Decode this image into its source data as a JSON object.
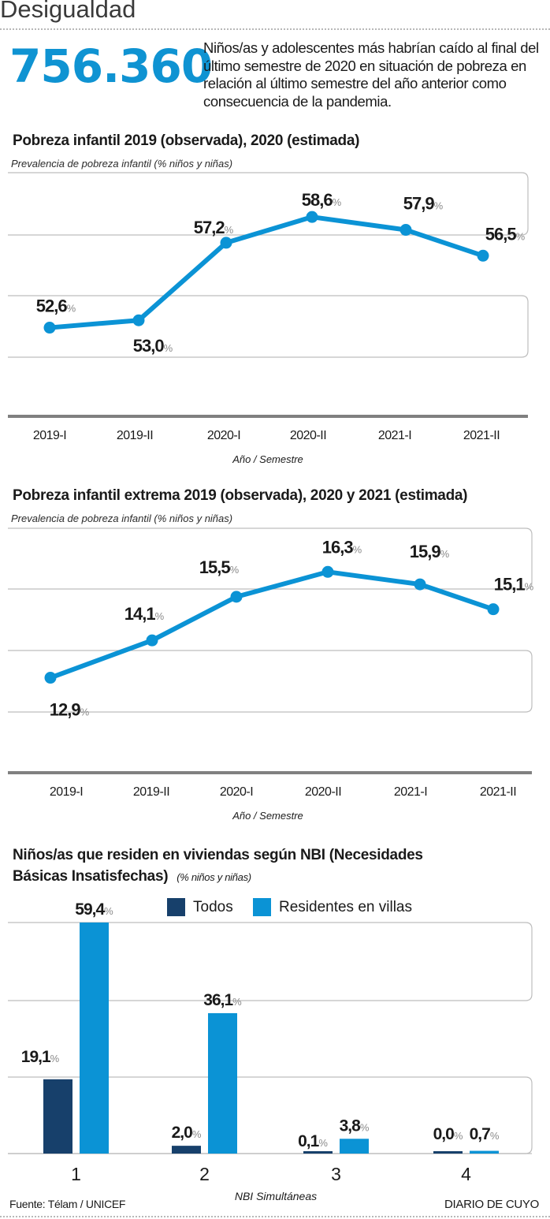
{
  "header": {
    "section_title": "Desigualdad",
    "big_number": "756.360",
    "intro_text": "Niños/as y adolescentes más habrían caído al final del último semestre de 2020 en situación de pobreza en relación al último semestre del año anterior como consecuencia de la pandemia."
  },
  "colors": {
    "accent": "#0f93d2",
    "line": "#0b93d5",
    "bar_todos": "#17406b",
    "bar_villas": "#0b93d5",
    "text": "#1a1a1a",
    "percent_sign": "#8a8a8a",
    "grid": "#bdbdbd",
    "axis": "#808080"
  },
  "chart_data": [
    {
      "type": "line",
      "title": "Pobreza infantil 2019 (observada), 2020 (estimada)",
      "subtitle": "Prevalencia de pobreza infantil (% niños y niñas)",
      "xlabel": "Año / Semestre",
      "ylabel": "",
      "categories": [
        "2019-I",
        "2019-II",
        "2020-I",
        "2020-II",
        "2021-I",
        "2021-II"
      ],
      "values": [
        52.6,
        53.0,
        57.2,
        58.6,
        57.9,
        56.5
      ],
      "labels": [
        "52,6",
        "53,0",
        "57,2",
        "58,6",
        "57,9",
        "56,5"
      ],
      "label_suffix": "%",
      "ylim": [
        51,
        61
      ],
      "grid": true,
      "legend": "none"
    },
    {
      "type": "line",
      "title": "Pobreza infantil extrema 2019 (observada), 2020 y 2021 (estimada)",
      "subtitle": "Prevalencia de pobreza infantil (% niños y niñas)",
      "xlabel": "Año / Semestre",
      "ylabel": "",
      "categories": [
        "2019-I",
        "2019-II",
        "2020-I",
        "2020-II",
        "2021-I",
        "2021-II"
      ],
      "values": [
        12.9,
        14.1,
        15.5,
        16.3,
        15.9,
        15.1
      ],
      "labels": [
        "12,9",
        "14,1",
        "15,5",
        "16,3",
        "15,9",
        "15,1"
      ],
      "label_suffix": "%",
      "ylim": [
        11.8,
        17.7
      ],
      "grid": true,
      "legend": "none"
    },
    {
      "type": "bar",
      "title": "Niños/as que residen en viviendas según NBI (Necesidades Básicas Insatisfechas)",
      "title_line1": "Niños/as que residen en viviendas según NBI (Necesidades",
      "title_line2": "Básicas Insatisfechas)",
      "subtitle": "(% niños y niñas)",
      "xlabel": "NBI Simultáneas",
      "ylabel": "",
      "categories": [
        "1",
        "2",
        "3",
        "4"
      ],
      "series": [
        {
          "name": "Todos",
          "values": [
            19.1,
            2.0,
            0.1,
            0.0
          ],
          "labels": [
            "19,1",
            "2,0",
            "0,1",
            "0,0"
          ]
        },
        {
          "name": "Residentes en villas",
          "values": [
            59.4,
            36.1,
            3.8,
            0.7
          ],
          "labels": [
            "59,4",
            "36,1",
            "3,8",
            "0,7"
          ]
        }
      ],
      "label_suffix": "%",
      "ylim": [
        0,
        60
      ],
      "grid": true,
      "legend": "top"
    }
  ],
  "footer": {
    "source": "Fuente: Télam / UNICEF",
    "brand": "DIARIO DE CUYO"
  }
}
